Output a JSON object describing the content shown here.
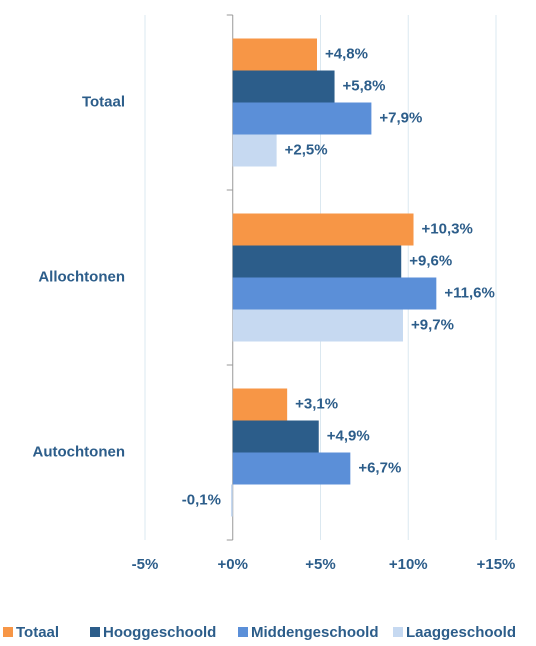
{
  "chart_data": {
    "type": "hbar",
    "categories": [
      "Totaal",
      "Allochtonen",
      "Autochtonen"
    ],
    "series": [
      {
        "name": "Totaal",
        "color": "#f79646",
        "values": [
          4.8,
          10.3,
          3.1
        ],
        "value_labels": [
          "+4,8%",
          "+10,3%",
          "+3,1%"
        ]
      },
      {
        "name": "Hooggeschoold",
        "color": "#2c5d8a",
        "values": [
          5.8,
          9.6,
          4.9
        ],
        "value_labels": [
          "+5,8%",
          "+9,6%",
          "+4,9%"
        ]
      },
      {
        "name": "Middengeschoold",
        "color": "#5b8fd8",
        "values": [
          7.9,
          11.6,
          6.7
        ],
        "value_labels": [
          "+7,9%",
          "+11,6%",
          "+6,7%"
        ]
      },
      {
        "name": "Laaggeschoold",
        "color": "#c6d9f1",
        "values": [
          2.5,
          9.7,
          -0.1
        ],
        "value_labels": [
          "+2,5%",
          "+9,7%",
          "-0,1%"
        ]
      }
    ],
    "xlim": [
      -5,
      15
    ],
    "xticks": [
      {
        "value": -5,
        "label": "-5%"
      },
      {
        "value": 0,
        "label": "+0%"
      },
      {
        "value": 5,
        "label": "+5%"
      },
      {
        "value": 10,
        "label": "+10%"
      },
      {
        "value": 15,
        "label": "+15%"
      }
    ],
    "grid": true
  }
}
